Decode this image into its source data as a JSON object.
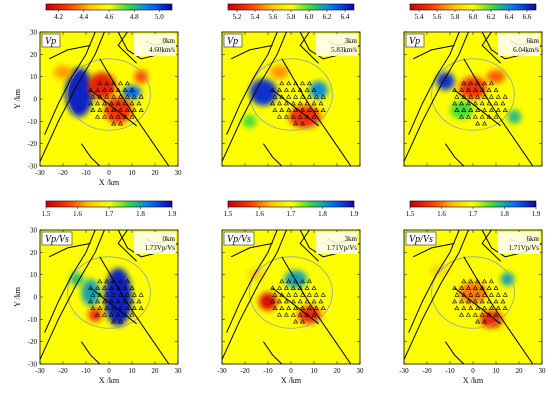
{
  "chart_data": [
    {
      "type": "heatmap",
      "param": "Vp",
      "param_sub": "p",
      "depth": "0km",
      "avg": "4.60km/s",
      "colorbar": {
        "ticks": [
          "4.2",
          "4.4",
          "4.6",
          "4.8",
          "5.0"
        ],
        "min": 4.1,
        "max": 5.1
      },
      "xlabel": "X /km",
      "ylabel": "Y /km",
      "xlim": [
        -30,
        30
      ],
      "ylim": [
        -30,
        30
      ],
      "xticks": [
        "-30",
        "-20",
        "-10",
        "0",
        "10",
        "20",
        "30"
      ],
      "yticks": [
        "30",
        "20",
        "10",
        "0",
        "-10",
        "-20",
        "-30"
      ],
      "blobs": [
        {
          "x": -13,
          "y": 3,
          "rx": 6,
          "ry": 11,
          "v": 5.05
        },
        {
          "x": -3,
          "y": 6,
          "rx": 6,
          "ry": 6,
          "v": 4.2
        },
        {
          "x": 4,
          "y": -5,
          "rx": 6,
          "ry": 6,
          "v": 4.25
        },
        {
          "x": 10,
          "y": 3,
          "rx": 4,
          "ry": 3,
          "v": 4.95
        },
        {
          "x": 14,
          "y": 10,
          "rx": 3,
          "ry": 3,
          "v": 4.3
        },
        {
          "x": -20,
          "y": 12,
          "rx": 4,
          "ry": 3,
          "v": 4.4
        }
      ]
    },
    {
      "type": "heatmap",
      "param": "Vp",
      "param_sub": "p",
      "depth": "3km",
      "avg": "5.83km/s",
      "colorbar": {
        "ticks": [
          "5.2",
          "5.4",
          "5.6",
          "5.8",
          "6.0",
          "6.2",
          "6.4"
        ],
        "min": 5.1,
        "max": 6.5
      },
      "xlabel": "",
      "ylabel": "",
      "xlim": [
        -30,
        30
      ],
      "ylim": [
        -30,
        30
      ],
      "xticks": [],
      "yticks": [],
      "blobs": [
        {
          "x": -12,
          "y": 3,
          "rx": 6,
          "ry": 6,
          "v": 6.4
        },
        {
          "x": 6,
          "y": -8,
          "rx": 7,
          "ry": 5,
          "v": 5.3
        },
        {
          "x": -5,
          "y": 12,
          "rx": 4,
          "ry": 3,
          "v": 5.5
        },
        {
          "x": 12,
          "y": 4,
          "rx": 4,
          "ry": 4,
          "v": 6.2
        },
        {
          "x": -18,
          "y": -10,
          "rx": 3,
          "ry": 3,
          "v": 6.0
        }
      ]
    },
    {
      "type": "heatmap",
      "param": "Vp",
      "param_sub": "p",
      "depth": "6km",
      "avg": "6.04km/s",
      "colorbar": {
        "ticks": [
          "5.4",
          "5.6",
          "5.8",
          "6.0",
          "6.2",
          "6.4",
          "6.6"
        ],
        "min": 5.3,
        "max": 6.7
      },
      "xlabel": "",
      "ylabel": "",
      "xlim": [
        -30,
        30
      ],
      "ylim": [
        -30,
        30
      ],
      "xticks": [],
      "yticks": [],
      "blobs": [
        {
          "x": -12,
          "y": 8,
          "rx": 4,
          "ry": 4,
          "v": 6.6
        },
        {
          "x": 0,
          "y": 5,
          "rx": 6,
          "ry": 5,
          "v": 5.5
        },
        {
          "x": -5,
          "y": -5,
          "rx": 5,
          "ry": 4,
          "v": 6.2
        },
        {
          "x": 10,
          "y": 10,
          "rx": 4,
          "ry": 3,
          "v": 5.6
        },
        {
          "x": 18,
          "y": -8,
          "rx": 3,
          "ry": 3,
          "v": 6.3
        }
      ]
    },
    {
      "type": "heatmap",
      "param": "Vp/Vs",
      "param_sub": "p",
      "depth": "0km",
      "avg": "1.73Vp/Vs",
      "colorbar": {
        "ticks": [
          "1.5",
          "1.6",
          "1.7",
          "1.8",
          "1.9"
        ],
        "min": 1.5,
        "max": 1.9
      },
      "xlabel": "X /km",
      "ylabel": "Y /km",
      "xlim": [
        -30,
        30
      ],
      "ylim": [
        -30,
        30
      ],
      "xticks": [
        "-30",
        "-20",
        "-10",
        "0",
        "10",
        "20",
        "30"
      ],
      "yticks": [
        "30",
        "20",
        "10",
        "0",
        "-10",
        "-20",
        "-30"
      ],
      "blobs": [
        {
          "x": 4,
          "y": 0,
          "rx": 6,
          "ry": 13,
          "v": 1.88
        },
        {
          "x": -8,
          "y": 2,
          "rx": 4,
          "ry": 6,
          "v": 1.8
        },
        {
          "x": -6,
          "y": -8,
          "rx": 3,
          "ry": 3,
          "v": 1.55
        },
        {
          "x": -14,
          "y": 8,
          "rx": 3,
          "ry": 3,
          "v": 1.78
        }
      ]
    },
    {
      "type": "heatmap",
      "param": "Vp/Vs",
      "param_sub": "p",
      "depth": "3km",
      "avg": "1.71Vp/Vs",
      "colorbar": {
        "ticks": [
          "1.5",
          "1.6",
          "1.7",
          "1.8",
          "1.9"
        ],
        "min": 1.5,
        "max": 1.9
      },
      "xlabel": "X /km",
      "ylabel": "",
      "xlim": [
        -30,
        30
      ],
      "ylim": [
        -30,
        30
      ],
      "xticks": [
        "-30",
        "-20",
        "-10",
        "0",
        "10",
        "20",
        "30"
      ],
      "yticks": [],
      "blobs": [
        {
          "x": -10,
          "y": -2,
          "rx": 4,
          "ry": 4,
          "v": 1.52
        },
        {
          "x": 2,
          "y": 8,
          "rx": 5,
          "ry": 4,
          "v": 1.8
        },
        {
          "x": 8,
          "y": -8,
          "rx": 5,
          "ry": 4,
          "v": 1.55
        },
        {
          "x": -15,
          "y": 10,
          "rx": 4,
          "ry": 3,
          "v": 1.65
        }
      ]
    },
    {
      "type": "heatmap",
      "param": "Vp/Vs",
      "param_sub": "p",
      "depth": "6km",
      "avg": "1.71Vp/Vs",
      "colorbar": {
        "ticks": [
          "1.5",
          "1.6",
          "1.7",
          "1.8",
          "1.9"
        ],
        "min": 1.5,
        "max": 1.9
      },
      "xlabel": "X /km",
      "ylabel": "",
      "xlim": [
        -30,
        30
      ],
      "ylim": [
        -30,
        30
      ],
      "xticks": [
        "-30",
        "-20",
        "-10",
        "0",
        "10",
        "20",
        "30"
      ],
      "yticks": [],
      "blobs": [
        {
          "x": 0,
          "y": 2,
          "rx": 6,
          "ry": 5,
          "v": 1.6
        },
        {
          "x": 8,
          "y": -10,
          "rx": 5,
          "ry": 4,
          "v": 1.55
        },
        {
          "x": -15,
          "y": 12,
          "rx": 4,
          "ry": 3,
          "v": 1.66
        },
        {
          "x": 15,
          "y": 8,
          "rx": 3,
          "ry": 3,
          "v": 1.8
        }
      ]
    }
  ]
}
